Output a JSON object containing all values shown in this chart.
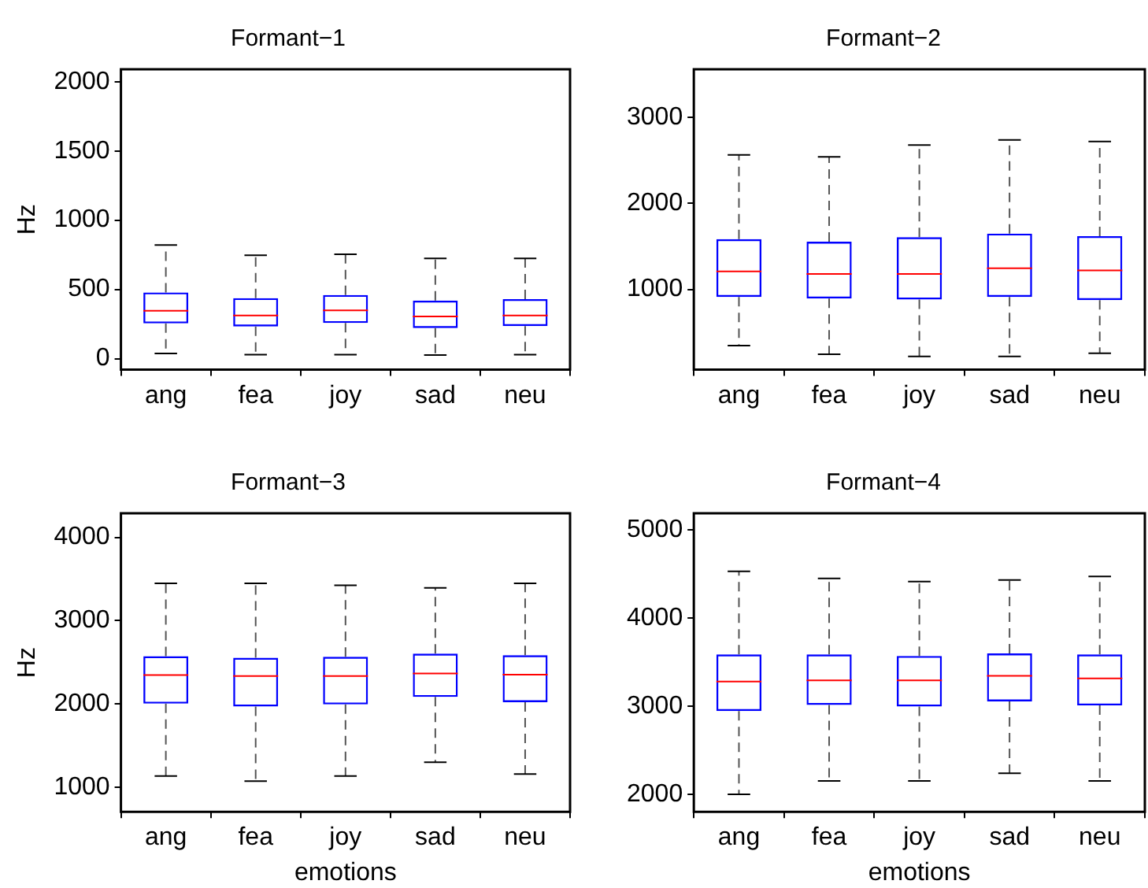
{
  "chart_data": [
    {
      "type": "box",
      "title": "Formant−1",
      "ylabel": "Hz",
      "categories": [
        "ang",
        "fea",
        "joy",
        "sad",
        "neu"
      ],
      "color": "#0000ff",
      "ylim": [
        -80,
        2090
      ],
      "yticks": [
        0,
        500,
        1000,
        1500,
        2000
      ],
      "grid": false,
      "boxes": [
        {
          "low": 37,
          "q1": 254,
          "median": 346,
          "q3": 478,
          "high": 820
        },
        {
          "low": 29,
          "q1": 232,
          "median": 312,
          "q3": 437,
          "high": 746
        },
        {
          "low": 29,
          "q1": 257,
          "median": 349,
          "q3": 460,
          "high": 754
        },
        {
          "low": 26,
          "q1": 221,
          "median": 305,
          "q3": 419,
          "high": 724
        },
        {
          "low": 29,
          "q1": 235,
          "median": 312,
          "q3": 430,
          "high": 724
        }
      ]
    },
    {
      "type": "box",
      "title": "Formant−2",
      "categories": [
        "ang",
        "fea",
        "joy",
        "sad",
        "neu"
      ],
      "color": "#0000ff",
      "ylim": [
        65,
        3560
      ],
      "yticks": [
        1000,
        2000,
        3000
      ],
      "grid": false,
      "boxes": [
        {
          "low": 345,
          "q1": 911,
          "median": 1208,
          "q3": 1583,
          "high": 2565
        },
        {
          "low": 244,
          "q1": 893,
          "median": 1179,
          "q3": 1554,
          "high": 2542
        },
        {
          "low": 220,
          "q1": 881,
          "median": 1179,
          "q3": 1607,
          "high": 2679
        },
        {
          "low": 220,
          "q1": 911,
          "median": 1244,
          "q3": 1649,
          "high": 2738
        },
        {
          "low": 256,
          "q1": 875,
          "median": 1220,
          "q3": 1619,
          "high": 2720
        }
      ]
    },
    {
      "type": "box",
      "title": "Formant−3",
      "xlabel": "emotions",
      "ylabel": "Hz",
      "categories": [
        "ang",
        "fea",
        "joy",
        "sad",
        "neu"
      ],
      "color": "#0000ff",
      "ylim": [
        705,
        4290
      ],
      "yticks": [
        1000,
        2000,
        3000,
        4000
      ],
      "grid": false,
      "boxes": [
        {
          "low": 1135,
          "q1": 2004,
          "median": 2347,
          "q3": 2573,
          "high": 3449
        },
        {
          "low": 1074,
          "q1": 1969,
          "median": 2335,
          "q3": 2555,
          "high": 3449
        },
        {
          "low": 1135,
          "q1": 1994,
          "median": 2335,
          "q3": 2567,
          "high": 3424
        },
        {
          "low": 1300,
          "q1": 2084,
          "median": 2365,
          "q3": 2604,
          "high": 3394
        },
        {
          "low": 1159,
          "q1": 2022,
          "median": 2353,
          "q3": 2586,
          "high": 3449
        }
      ]
    },
    {
      "type": "box",
      "title": "Formant−4",
      "xlabel": "emotions",
      "categories": [
        "ang",
        "fea",
        "joy",
        "sad",
        "neu"
      ],
      "color": "#0000ff",
      "ylim": [
        1806,
        5190
      ],
      "yticks": [
        2000,
        3000,
        4000,
        5000
      ],
      "grid": false,
      "boxes": [
        {
          "low": 2005,
          "q1": 2948,
          "median": 3283,
          "q3": 3590,
          "high": 4532
        },
        {
          "low": 2156,
          "q1": 3017,
          "median": 3295,
          "q3": 3590,
          "high": 4451
        },
        {
          "low": 2156,
          "q1": 3000,
          "median": 3295,
          "q3": 3573,
          "high": 4416
        },
        {
          "low": 2243,
          "q1": 3058,
          "median": 3347,
          "q3": 3601,
          "high": 4434
        },
        {
          "low": 2156,
          "q1": 3012,
          "median": 3318,
          "q3": 3590,
          "high": 4474
        }
      ]
    }
  ]
}
